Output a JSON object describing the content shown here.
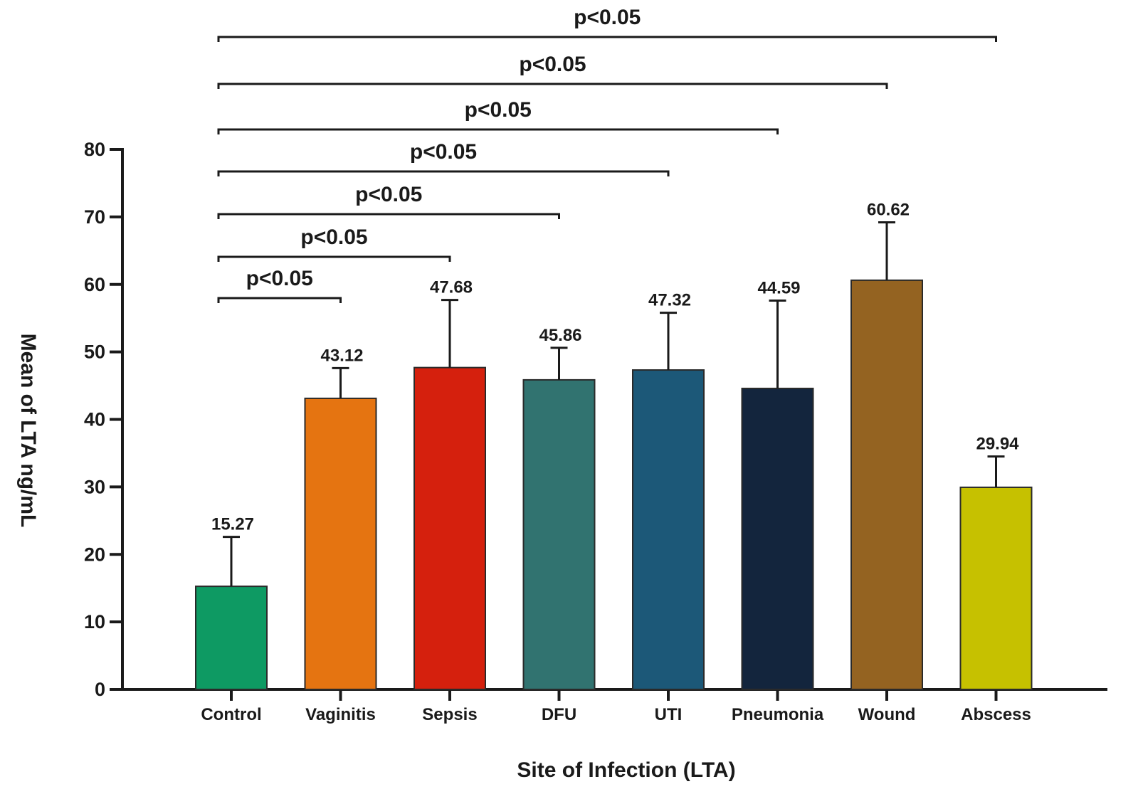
{
  "chart_data": {
    "type": "bar",
    "xlabel": "Site of Infection (LTA)",
    "ylabel": "Mean of LTA ng/mL",
    "ylim": [
      0,
      80
    ],
    "yticks": [
      0,
      10,
      20,
      30,
      40,
      50,
      60,
      70,
      80
    ],
    "grid": false,
    "categories": [
      "Control",
      "Vaginitis",
      "Sepsis",
      "DFU",
      "UTI",
      "Pneumonia",
      "Wound",
      "Abscess"
    ],
    "values": [
      15.27,
      43.12,
      47.68,
      45.86,
      47.32,
      44.59,
      60.62,
      29.94
    ],
    "value_labels": [
      "15.27",
      "43.12",
      "47.68",
      "45.86",
      "47.32",
      "44.59",
      "60.62",
      "29.94"
    ],
    "error_upper": [
      22.6,
      47.6,
      57.7,
      50.6,
      55.8,
      57.6,
      69.2,
      34.5
    ],
    "colors": [
      "#0e9a63",
      "#e57411",
      "#d5200d",
      "#317370",
      "#1c5878",
      "#13253d",
      "#946321",
      "#c6c100"
    ],
    "significance": [
      {
        "from": "Control",
        "to": "Vaginitis",
        "label": "p<0.05"
      },
      {
        "from": "Control",
        "to": "Sepsis",
        "label": "p<0.05"
      },
      {
        "from": "Control",
        "to": "DFU",
        "label": "p<0.05"
      },
      {
        "from": "Control",
        "to": "UTI",
        "label": "p<0.05"
      },
      {
        "from": "Control",
        "to": "Pneumonia",
        "label": "p<0.05"
      },
      {
        "from": "Control",
        "to": "Wound",
        "label": "p<0.05"
      },
      {
        "from": "Control",
        "to": "Abscess",
        "label": "p<0.05"
      }
    ]
  }
}
